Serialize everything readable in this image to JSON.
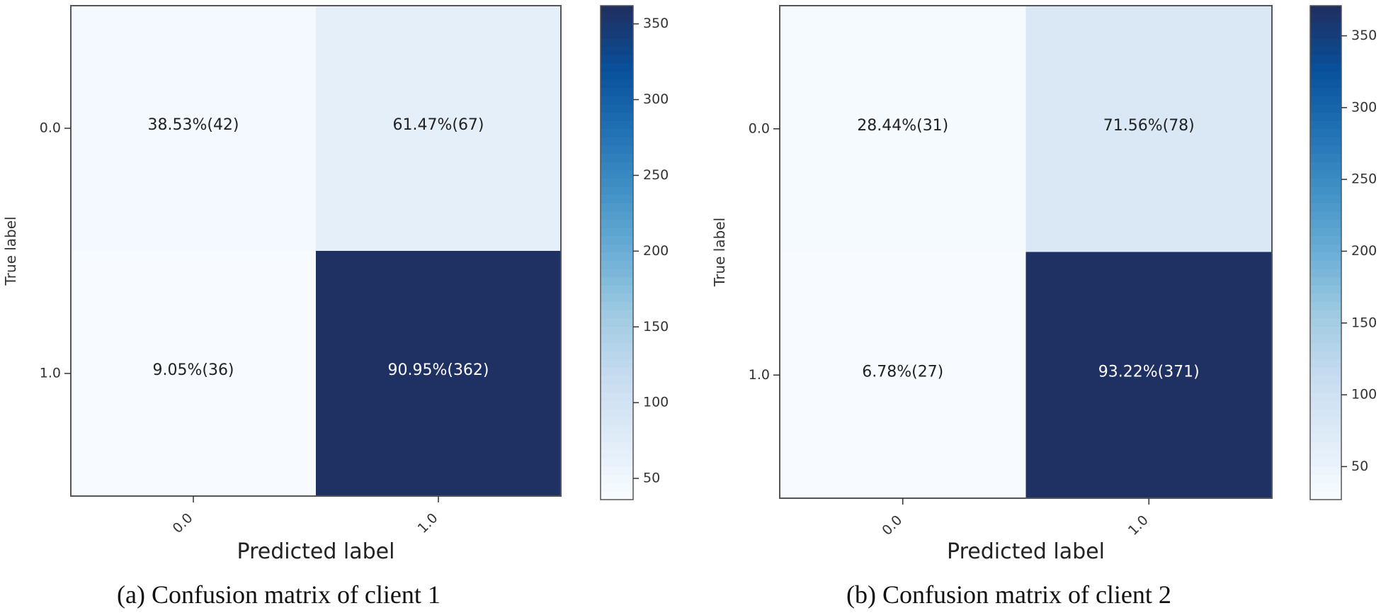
{
  "chart_data": [
    {
      "type": "heatmap",
      "caption": "(a) Confusion matrix of client 1",
      "xlabel": "Predicted label",
      "ylabel": "True label",
      "x_ticks": [
        "0.0",
        "1.0"
      ],
      "y_ticks": [
        "0.0",
        "1.0"
      ],
      "cells": [
        [
          {
            "percent": 38.53,
            "count": 42,
            "label": "38.53%(42)"
          },
          {
            "percent": 61.47,
            "count": 67,
            "label": "61.47%(67)"
          }
        ],
        [
          {
            "percent": 9.05,
            "count": 36,
            "label": "9.05%(36)"
          },
          {
            "percent": 90.95,
            "count": 362,
            "label": "90.95%(362)"
          }
        ]
      ],
      "colorbar": {
        "min": 36,
        "max": 362,
        "ticks": [
          50,
          100,
          150,
          200,
          250,
          300,
          350
        ],
        "colormap": "Blues"
      }
    },
    {
      "type": "heatmap",
      "caption": "(b) Confusion matrix of client 2",
      "xlabel": "Predicted label",
      "ylabel": "True label",
      "x_ticks": [
        "0.0",
        "1.0"
      ],
      "y_ticks": [
        "0.0",
        "1.0"
      ],
      "cells": [
        [
          {
            "percent": 28.44,
            "count": 31,
            "label": "28.44%(31)"
          },
          {
            "percent": 71.56,
            "count": 78,
            "label": "71.56%(78)"
          }
        ],
        [
          {
            "percent": 6.78,
            "count": 27,
            "label": "6.78%(27)"
          },
          {
            "percent": 93.22,
            "count": 371,
            "label": "93.22%(371)"
          }
        ]
      ],
      "colorbar": {
        "min": 27,
        "max": 371,
        "ticks": [
          50,
          100,
          150,
          200,
          250,
          300,
          350
        ],
        "colormap": "Blues"
      }
    }
  ]
}
